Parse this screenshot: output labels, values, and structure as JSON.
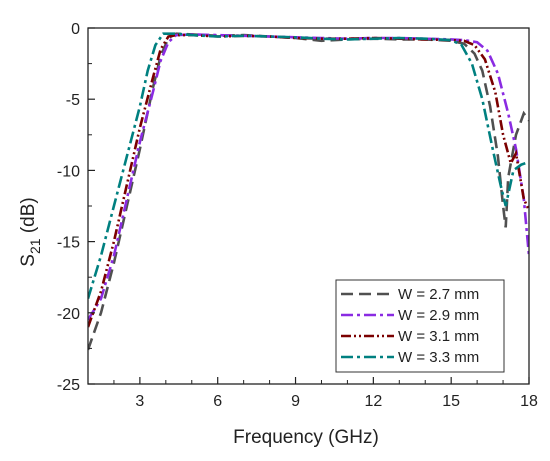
{
  "chart_data": {
    "type": "line",
    "xlabel": "Frequency (GHz)",
    "ylabel_main": "S",
    "ylabel_sub": "21",
    "ylabel_unit": " (dB)",
    "xlim": [
      1,
      18
    ],
    "ylim": [
      -25,
      0
    ],
    "xticks": [
      3,
      6,
      9,
      12,
      15,
      18
    ],
    "xtick_labels": [
      "3",
      "6",
      "9",
      "12",
      "15",
      "18"
    ],
    "yticks": [
      0,
      -5,
      -10,
      -15,
      -20,
      -25
    ],
    "ytick_labels": [
      "0",
      "-5",
      "-10",
      "-15",
      "-20",
      "-25"
    ],
    "grid": false,
    "legend_position": "bottom-right",
    "series": [
      {
        "name": "W = 2.7 mm",
        "color": "#505050",
        "dash": "dash",
        "points": [
          [
            1.0,
            -22.6
          ],
          [
            1.5,
            -20.0
          ],
          [
            2.0,
            -16.5
          ],
          [
            2.5,
            -12.5
          ],
          [
            3.0,
            -8.5
          ],
          [
            3.5,
            -4.2
          ],
          [
            3.8,
            -2.0
          ],
          [
            4.1,
            -0.7
          ],
          [
            4.4,
            -0.4
          ],
          [
            5,
            -0.45
          ],
          [
            6,
            -0.55
          ],
          [
            7,
            -0.5
          ],
          [
            8,
            -0.6
          ],
          [
            9,
            -0.7
          ],
          [
            10,
            -0.9
          ],
          [
            11,
            -0.8
          ],
          [
            12,
            -0.75
          ],
          [
            13,
            -0.8
          ],
          [
            14,
            -0.8
          ],
          [
            15,
            -0.9
          ],
          [
            15.5,
            -1.1
          ],
          [
            15.9,
            -1.8
          ],
          [
            16.2,
            -3.0
          ],
          [
            16.5,
            -5.5
          ],
          [
            16.8,
            -9.0
          ],
          [
            17.0,
            -12.5
          ],
          [
            17.1,
            -14.0
          ],
          [
            17.2,
            -10.5
          ],
          [
            17.5,
            -7.5
          ],
          [
            17.8,
            -6.0
          ],
          [
            18.0,
            -6.5
          ]
        ]
      },
      {
        "name": "W = 2.9 mm",
        "color": "#8a2be2",
        "dash": "dashdot",
        "points": [
          [
            1.0,
            -20.5
          ],
          [
            1.5,
            -19.0
          ],
          [
            2.0,
            -16.0
          ],
          [
            2.5,
            -12.0
          ],
          [
            3.0,
            -8.0
          ],
          [
            3.5,
            -4.5
          ],
          [
            3.8,
            -2.3
          ],
          [
            4.1,
            -1.0
          ],
          [
            4.4,
            -0.5
          ],
          [
            5,
            -0.45
          ],
          [
            6,
            -0.5
          ],
          [
            7,
            -0.55
          ],
          [
            8,
            -0.6
          ],
          [
            9,
            -0.65
          ],
          [
            10,
            -0.7
          ],
          [
            11,
            -0.75
          ],
          [
            12,
            -0.7
          ],
          [
            13,
            -0.7
          ],
          [
            14,
            -0.75
          ],
          [
            15,
            -0.8
          ],
          [
            15.5,
            -0.85
          ],
          [
            16.0,
            -1.0
          ],
          [
            16.4,
            -1.6
          ],
          [
            16.8,
            -3.2
          ],
          [
            17.2,
            -6.0
          ],
          [
            17.5,
            -8.5
          ],
          [
            17.8,
            -12.0
          ],
          [
            18.0,
            -16.0
          ]
        ]
      },
      {
        "name": "W = 3.1 mm",
        "color": "#7b0000",
        "dash": "dashdotdot",
        "points": [
          [
            1.0,
            -21.0
          ],
          [
            1.5,
            -18.5
          ],
          [
            2.0,
            -15.0
          ],
          [
            2.5,
            -11.0
          ],
          [
            3.0,
            -7.0
          ],
          [
            3.5,
            -3.5
          ],
          [
            3.8,
            -1.5
          ],
          [
            4.1,
            -0.6
          ],
          [
            4.4,
            -0.5
          ],
          [
            5,
            -0.5
          ],
          [
            6,
            -0.6
          ],
          [
            7,
            -0.55
          ],
          [
            8,
            -0.6
          ],
          [
            9,
            -0.7
          ],
          [
            10,
            -0.75
          ],
          [
            11,
            -0.75
          ],
          [
            12,
            -0.7
          ],
          [
            13,
            -0.75
          ],
          [
            14,
            -0.8
          ],
          [
            15,
            -0.85
          ],
          [
            15.5,
            -0.9
          ],
          [
            15.9,
            -1.2
          ],
          [
            16.3,
            -2.2
          ],
          [
            16.7,
            -4.5
          ],
          [
            17.0,
            -7.5
          ],
          [
            17.3,
            -9.5
          ],
          [
            17.5,
            -8.8
          ],
          [
            17.8,
            -12.0
          ],
          [
            18.0,
            -12.8
          ]
        ]
      },
      {
        "name": "W = 3.3 mm",
        "color": "#008080",
        "dash": "dashdot",
        "points": [
          [
            1.0,
            -19.0
          ],
          [
            1.5,
            -16.0
          ],
          [
            2.0,
            -12.5
          ],
          [
            2.5,
            -9.0
          ],
          [
            3.0,
            -5.5
          ],
          [
            3.3,
            -3.0
          ],
          [
            3.6,
            -1.2
          ],
          [
            3.9,
            -0.4
          ],
          [
            4.4,
            -0.4
          ],
          [
            5,
            -0.5
          ],
          [
            6,
            -0.6
          ],
          [
            7,
            -0.55
          ],
          [
            8,
            -0.6
          ],
          [
            9,
            -0.65
          ],
          [
            10,
            -0.75
          ],
          [
            11,
            -0.8
          ],
          [
            12,
            -0.75
          ],
          [
            13,
            -0.7
          ],
          [
            14,
            -0.75
          ],
          [
            15,
            -0.85
          ],
          [
            15.4,
            -1.2
          ],
          [
            15.8,
            -2.5
          ],
          [
            16.2,
            -5.0
          ],
          [
            16.6,
            -8.5
          ],
          [
            16.9,
            -11.0
          ],
          [
            17.1,
            -12.5
          ],
          [
            17.4,
            -10.0
          ],
          [
            17.7,
            -9.6
          ],
          [
            18.0,
            -9.4
          ]
        ]
      }
    ]
  }
}
